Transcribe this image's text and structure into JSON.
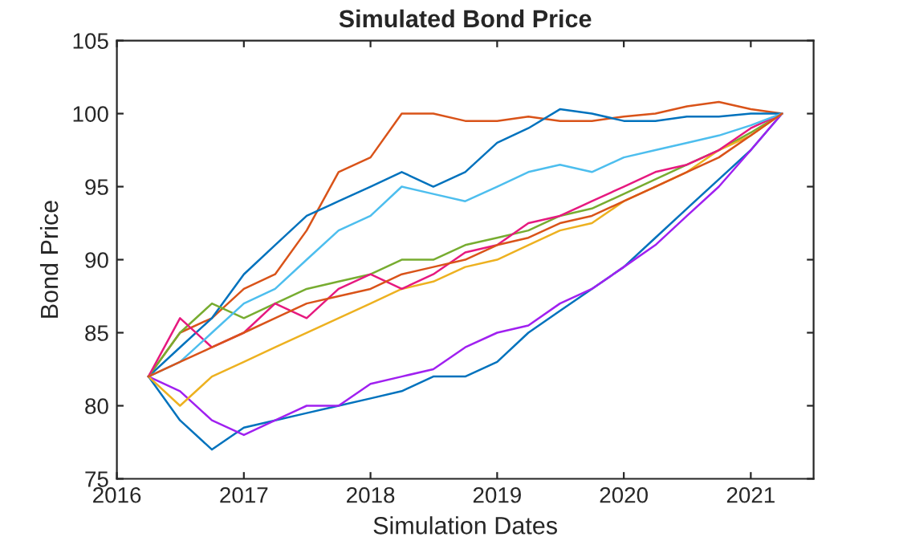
{
  "chart_data": {
    "type": "line",
    "title": "Simulated Bond Price",
    "xlabel": "Simulation Dates",
    "ylabel": "Bond Price",
    "x": [
      "2016-04-01",
      "2016-07-01",
      "2016-10-01",
      "2017-01-01",
      "2017-04-01",
      "2017-07-01",
      "2017-10-01",
      "2018-01-01",
      "2018-04-01",
      "2018-07-01",
      "2018-10-01",
      "2019-01-01",
      "2019-04-01",
      "2019-07-01",
      "2019-10-01",
      "2020-01-01",
      "2020-04-01",
      "2020-07-01",
      "2020-10-01",
      "2021-01-01",
      "2021-04-01"
    ],
    "series": [
      {
        "color": "#d95319",
        "values": [
          82,
          85,
          86,
          88,
          89,
          92,
          96,
          97,
          100,
          100,
          99.5,
          99.5,
          99.8,
          99.5,
          99.5,
          99.8,
          100,
          100.5,
          100.8,
          100.3,
          100
        ]
      },
      {
        "color": "#0072bd",
        "values": [
          82,
          79,
          77,
          78.5,
          79,
          79.5,
          80,
          80.5,
          81,
          82,
          82,
          83,
          85,
          86.5,
          88,
          89.5,
          91.5,
          93.5,
          95.5,
          97.5,
          100
        ]
      },
      {
        "color": "#0072bd",
        "values": [
          82,
          84,
          86,
          89,
          91,
          93,
          94,
          95,
          96,
          95,
          96,
          98,
          99,
          100.3,
          100,
          99.5,
          99.5,
          99.8,
          99.8,
          100,
          100
        ]
      },
      {
        "color": "#a020f0",
        "values": [
          82,
          81,
          79,
          78,
          79,
          80,
          80,
          81.5,
          82,
          82.5,
          84,
          85,
          85.5,
          87,
          88,
          89.5,
          91,
          93,
          95,
          97.5,
          100
        ]
      },
      {
        "color": "#77ac30",
        "values": [
          82,
          85,
          87,
          86,
          87,
          88,
          88.5,
          89,
          90,
          90,
          91,
          91.5,
          92,
          93,
          93.5,
          94.5,
          95.5,
          96.5,
          97.5,
          98.7,
          100
        ]
      },
      {
        "color": "#edb120",
        "values": [
          82,
          80,
          82,
          83,
          84,
          85,
          86,
          87,
          88,
          88.5,
          89.5,
          90,
          91,
          92,
          92.5,
          94,
          95,
          96,
          97.5,
          98.5,
          100
        ]
      },
      {
        "color": "#e6197f",
        "values": [
          82,
          86,
          84,
          85,
          87,
          86,
          88,
          89,
          88,
          89,
          90.5,
          91,
          92.5,
          93,
          94,
          95,
          96,
          96.5,
          97.5,
          99,
          100
        ]
      },
      {
        "color": "#4dbeee",
        "values": [
          82,
          83,
          85,
          87,
          88,
          90,
          92,
          93,
          95,
          94.5,
          94,
          95,
          96,
          96.5,
          96,
          97,
          97.5,
          98,
          98.5,
          99.2,
          100
        ]
      },
      {
        "color": "#d95319",
        "values": [
          82,
          83,
          84,
          85,
          86,
          87,
          87.5,
          88,
          89,
          89.5,
          90,
          91,
          91.5,
          92.5,
          93,
          94,
          95,
          96,
          97,
          98.5,
          100
        ]
      }
    ],
    "xlim": [
      "2016-01-01",
      "2021-07-01"
    ],
    "xticks": [
      {
        "value": "2016-01-01",
        "label": "2016"
      },
      {
        "value": "2017-01-01",
        "label": "2017"
      },
      {
        "value": "2018-01-01",
        "label": "2018"
      },
      {
        "value": "2019-01-01",
        "label": "2019"
      },
      {
        "value": "2020-01-01",
        "label": "2020"
      },
      {
        "value": "2021-01-01",
        "label": "2021"
      }
    ],
    "ylim": [
      75,
      105
    ],
    "yticks": [
      75,
      80,
      85,
      90,
      95,
      100,
      105
    ],
    "grid": false,
    "legend": false
  }
}
